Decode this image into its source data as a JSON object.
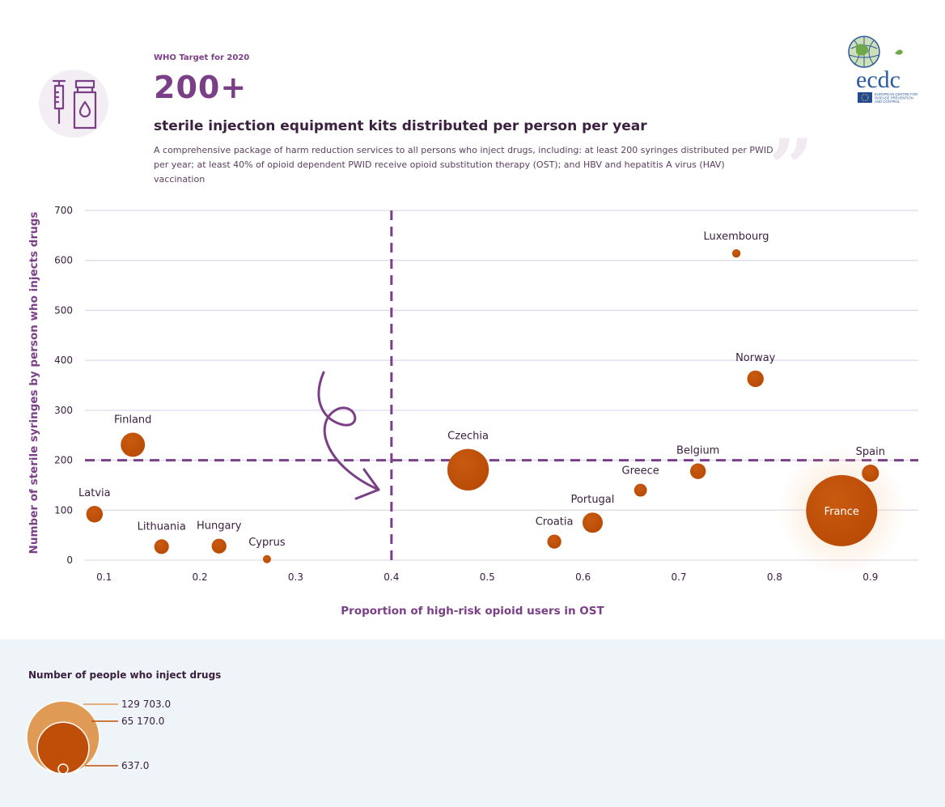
{
  "header": {
    "kicker": "WHO Target for 2020",
    "big_number": "200+",
    "headline": "sterile injection equipment kits distributed per person per year",
    "description": "A comprehensive package of harm reduction services to all persons who inject drugs, including: at least 200 syringes distributed per PWID per year; at least 40% of opioid dependent PWID receive opioid substitution therapy (OST); and HBV and hepatitis A virus (HAV) vaccination",
    "quote_mark": "”"
  },
  "logo": {
    "wordmark": "ecdc",
    "subtitle_lines": [
      "EUROPEAN CENTRE FOR",
      "DISEASE PREVENTION",
      "AND CONTROL"
    ]
  },
  "colors": {
    "purple": "#7a3f86",
    "bubble": "#bf4e08",
    "bubble_light": "#df9a55",
    "grid": "#ddd9e9"
  },
  "chart_data": {
    "type": "scatter",
    "subtype": "bubble",
    "xlabel": "Proportion of high-risk opioid users in OST",
    "ylabel": "Number of sterile syringes by person who injects drugs",
    "xlim": [
      0.08,
      0.95
    ],
    "ylim": [
      0,
      700
    ],
    "x_ticks": [
      0.1,
      0.2,
      0.3,
      0.4,
      0.5,
      0.6,
      0.7,
      0.8,
      0.9
    ],
    "y_ticks": [
      0,
      100,
      200,
      300,
      400,
      500,
      600,
      700
    ],
    "target_lines": {
      "x": 0.4,
      "y": 200
    },
    "points": [
      {
        "label": "Latvia",
        "x": 0.09,
        "y": 92,
        "pwid": 7000
      },
      {
        "label": "Finland",
        "x": 0.13,
        "y": 231,
        "pwid": 15000
      },
      {
        "label": "Lithuania",
        "x": 0.16,
        "y": 27,
        "pwid": 5500
      },
      {
        "label": "Hungary",
        "x": 0.22,
        "y": 28,
        "pwid": 5600
      },
      {
        "label": "Cyprus",
        "x": 0.27,
        "y": 2,
        "pwid": 637
      },
      {
        "label": "Czechia",
        "x": 0.48,
        "y": 181,
        "pwid": 44000
      },
      {
        "label": "Croatia",
        "x": 0.57,
        "y": 37,
        "pwid": 5000
      },
      {
        "label": "Portugal",
        "x": 0.61,
        "y": 75,
        "pwid": 10500
      },
      {
        "label": "Greece",
        "x": 0.66,
        "y": 140,
        "pwid": 4200
      },
      {
        "label": "Belgium",
        "x": 0.72,
        "y": 178,
        "pwid": 6300
      },
      {
        "label": "Luxembourg",
        "x": 0.76,
        "y": 614,
        "pwid": 1800
      },
      {
        "label": "Norway",
        "x": 0.78,
        "y": 363,
        "pwid": 7000
      },
      {
        "label": "France",
        "x": 0.87,
        "y": 99,
        "pwid": 129703
      },
      {
        "label": "Spain",
        "x": 0.9,
        "y": 174,
        "pwid": 7500
      }
    ],
    "size_legend": {
      "title": "Number of people who inject drugs",
      "values": [
        129703.0,
        65170.0,
        637.0
      ],
      "labels": [
        "129 703.0",
        "65 170.0",
        "637.0"
      ]
    }
  }
}
